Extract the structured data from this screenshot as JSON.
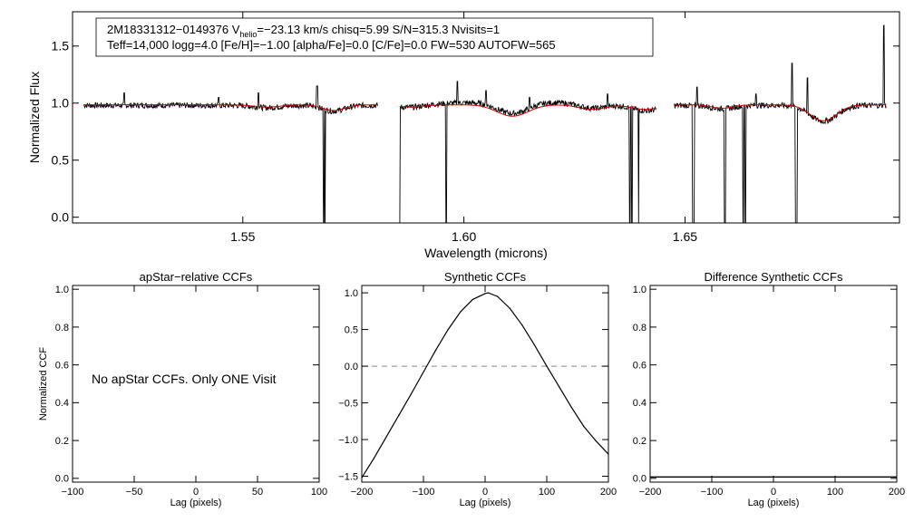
{
  "colors": {
    "observed": "#000000",
    "model": "#cc0000",
    "zero_line": "#888888",
    "background": "#ffffff"
  },
  "spectrum": {
    "info_line1_pre": "2M18331312−0149376  V",
    "info_line1_sub": "helio",
    "info_line1_post": "=−23.13 km/s  chisq=5.99  S/N=315.3  Nvisits=1",
    "info_line2": "Teff=14,000 logg=4.0 [Fe/H]=−1.00 [alpha/Fe]=0.0 [C/Fe]=0.0 FW=530 AUTOFW=565",
    "star_id": "2M18331312-0149376",
    "vhelio": -23.13,
    "chisq": 5.99,
    "snr": 315.3,
    "nvisits": 1,
    "teff": 14000,
    "logg": 4.0,
    "feh": -1.0,
    "alpha_fe": 0.0,
    "c_fe": 0.0,
    "fw": 530,
    "autofw": 565
  },
  "chart_data": [
    {
      "type": "line",
      "id": "spectrum",
      "title": "",
      "xlabel": "Wavelength (microns)",
      "ylabel": "Normalized Flux",
      "xlim": [
        1.5115,
        1.6985
      ],
      "ylim": [
        -0.05,
        1.8
      ],
      "xticks": [
        1.55,
        1.6,
        1.65
      ],
      "xtick_labels": [
        "1.55",
        "1.60",
        "1.65"
      ],
      "yticks": [
        0.0,
        0.5,
        1.0,
        1.5
      ],
      "ytick_labels": [
        "0.0",
        "0.5",
        "1.0",
        "1.5"
      ],
      "chips": [
        [
          1.514,
          1.5805
        ],
        [
          1.5855,
          1.6435
        ],
        [
          1.6475,
          1.6955
        ]
      ],
      "continuum": 0.98,
      "absorption_lines": [
        {
          "center": 1.5555,
          "depth": 0.02,
          "width": 0.003
        },
        {
          "center": 1.5705,
          "depth": 0.05,
          "width": 0.0025
        },
        {
          "center": 1.588,
          "depth": 0.02,
          "width": 0.003
        },
        {
          "center": 1.611,
          "depth": 0.1,
          "width": 0.0035
        },
        {
          "center": 1.629,
          "depth": 0.04,
          "width": 0.003
        },
        {
          "center": 1.641,
          "depth": 0.04,
          "width": 0.003
        },
        {
          "center": 1.6585,
          "depth": 0.03,
          "width": 0.0025
        },
        {
          "center": 1.6813,
          "depth": 0.14,
          "width": 0.003
        }
      ],
      "emission_spikes": [
        {
          "x": 1.5232,
          "y": 1.09
        },
        {
          "x": 1.5445,
          "y": 1.05
        },
        {
          "x": 1.5535,
          "y": 1.09
        },
        {
          "x": 1.5668,
          "y": 1.15
        },
        {
          "x": 1.5985,
          "y": 1.19
        },
        {
          "x": 1.605,
          "y": 1.11
        },
        {
          "x": 1.6148,
          "y": 1.05
        },
        {
          "x": 1.6325,
          "y": 1.08
        },
        {
          "x": 1.6527,
          "y": 1.14
        },
        {
          "x": 1.666,
          "y": 1.08
        },
        {
          "x": 1.6742,
          "y": 1.35
        },
        {
          "x": 1.6777,
          "y": 1.22
        },
        {
          "x": 1.695,
          "y": 1.68
        }
      ],
      "bad_pixel_drops": [
        1.5683,
        1.5686,
        1.5855,
        1.596,
        1.6375,
        1.638,
        1.6395,
        1.6518,
        1.652,
        1.6589,
        1.6591,
        1.6632,
        1.6636,
        1.675,
        1.6753
      ],
      "series": [
        {
          "name": "Observed spectrum",
          "color": "#000000"
        },
        {
          "name": "Best-fit model",
          "color": "#cc0000"
        }
      ]
    },
    {
      "type": "line",
      "id": "apstar_ccf",
      "title": "apStar−relative CCFs",
      "xlabel": "Lag (pixels)",
      "ylabel": "Normalized CCF",
      "xlim": [
        -100,
        100
      ],
      "ylim": [
        -0.02,
        1.02
      ],
      "xticks": [
        -100,
        -50,
        0,
        50,
        100
      ],
      "xtick_labels": [
        "−100",
        "−50",
        "0",
        "50",
        "100"
      ],
      "yticks": [
        0.0,
        0.2,
        0.4,
        0.6,
        0.8,
        1.0
      ],
      "ytick_labels": [
        "0.0",
        "0.2",
        "0.4",
        "0.6",
        "0.8",
        "1.0"
      ],
      "annotation": "No apStar CCFs.  Only ONE Visit",
      "series": []
    },
    {
      "type": "line",
      "id": "synthetic_ccf",
      "title": "Synthetic CCFs",
      "xlabel": "Lag (pixels)",
      "ylabel": "",
      "xlim": [
        -200,
        200
      ],
      "ylim": [
        -1.58,
        1.1
      ],
      "xticks": [
        -200,
        -100,
        0,
        100,
        200
      ],
      "xtick_labels": [
        "−200",
        "−100",
        "0",
        "100",
        "200"
      ],
      "yticks": [
        -1.5,
        -1.0,
        -0.5,
        0.0,
        0.5,
        1.0
      ],
      "ytick_labels": [
        "−1.5",
        "−1.0",
        "−0.5",
        "0.0",
        "0.5",
        "1.0"
      ],
      "reference_line": 0.0,
      "series": [
        {
          "name": "Synthetic CCF",
          "color": "#000000",
          "x": [
            -200,
            -180,
            -160,
            -140,
            -120,
            -100,
            -80,
            -60,
            -40,
            -20,
            0,
            5,
            20,
            40,
            60,
            80,
            100,
            120,
            140,
            160,
            180,
            200
          ],
          "y": [
            -1.52,
            -1.25,
            -0.96,
            -0.67,
            -0.38,
            -0.08,
            0.22,
            0.5,
            0.74,
            0.91,
            0.99,
            1.0,
            0.95,
            0.79,
            0.56,
            0.29,
            0.0,
            -0.28,
            -0.56,
            -0.82,
            -1.02,
            -1.2
          ]
        }
      ]
    },
    {
      "type": "line",
      "id": "difference_ccf",
      "title": "Difference Synthetic CCFs",
      "xlabel": "Lag (pixels)",
      "ylabel": "",
      "xlim": [
        -200,
        200
      ],
      "ylim": [
        -0.02,
        1.02
      ],
      "xticks": [
        -200,
        -100,
        0,
        100,
        200
      ],
      "xtick_labels": [
        "−200",
        "−100",
        "0",
        "100",
        "200"
      ],
      "yticks": [
        0.0,
        0.2,
        0.4,
        0.6,
        0.8,
        1.0
      ],
      "ytick_labels": [
        "0.0",
        "0.2",
        "0.4",
        "0.6",
        "0.8",
        "1.0"
      ],
      "series": [
        {
          "name": "Difference CCF",
          "color": "#000000",
          "x": [
            -200,
            200
          ],
          "y": [
            0.0,
            0.0
          ]
        }
      ]
    }
  ]
}
